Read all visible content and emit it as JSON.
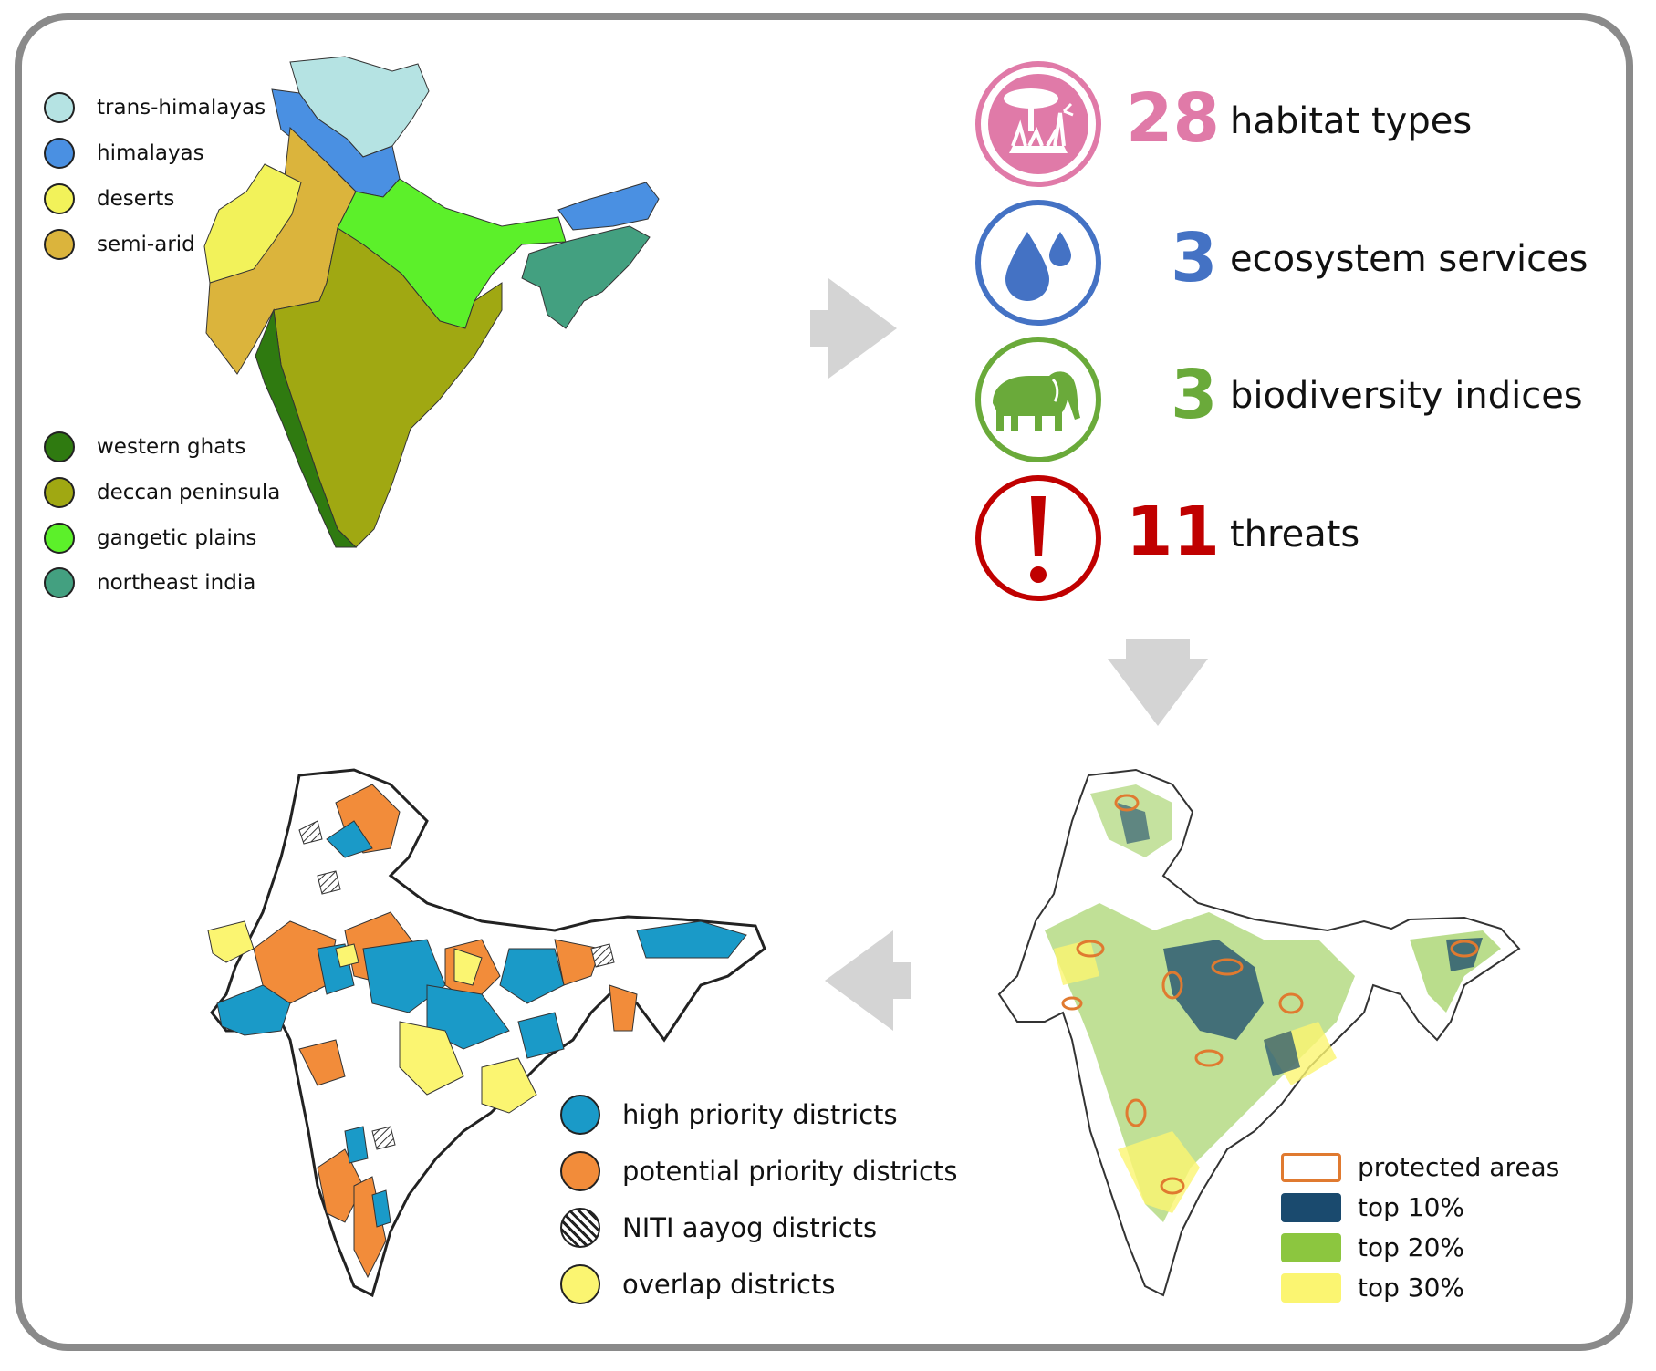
{
  "regions_legend": [
    {
      "label": "trans-himalayas",
      "color": "#b5e3e3"
    },
    {
      "label": "himalayas",
      "color": "#4a90e2"
    },
    {
      "label": "deserts",
      "color": "#f2f25a"
    },
    {
      "label": "semi-arid",
      "color": "#dbb43c"
    },
    {
      "label": "western ghats",
      "color": "#2f7a10"
    },
    {
      "label": "deccan peninsula",
      "color": "#a0a812"
    },
    {
      "label": "gangetic plains",
      "color": "#5cf02a"
    },
    {
      "label": "northeast india",
      "color": "#43a080"
    }
  ],
  "stats": [
    {
      "value": "28",
      "label": "habitat types",
      "color": "#e07aa8",
      "icon": "tree-landscape-icon"
    },
    {
      "value": "3",
      "label": "ecosystem services",
      "color": "#4472c4",
      "icon": "water-drops-icon"
    },
    {
      "value": "3",
      "label": "biodiversity indices",
      "color": "#6aaa3a",
      "icon": "elephant-icon"
    },
    {
      "value": "11",
      "label": "threats",
      "color": "#c00000",
      "icon": "exclamation-icon"
    }
  ],
  "priority_legend": [
    {
      "label": "protected areas",
      "color": "#e07a30",
      "style": "outline"
    },
    {
      "label": "top 10%",
      "color": "#1a4a6e",
      "style": "fill"
    },
    {
      "label": "top 20%",
      "color": "#8cc63f",
      "style": "fill"
    },
    {
      "label": "top 30%",
      "color": "#fbf571",
      "style": "fill"
    }
  ],
  "districts_legend": [
    {
      "label": "high priority districts",
      "color": "#1a9ac8",
      "style": "fill"
    },
    {
      "label": "potential priority districts",
      "color": "#f28c3a",
      "style": "fill"
    },
    {
      "label": "NITI aayog districts",
      "color": "#ffffff",
      "style": "hatch"
    },
    {
      "label": "overlap districts",
      "color": "#fbf571",
      "style": "fill"
    }
  ],
  "colors": {
    "arrow": "#d4d4d4",
    "frame": "#8a8a8a",
    "outline": "#222222"
  }
}
